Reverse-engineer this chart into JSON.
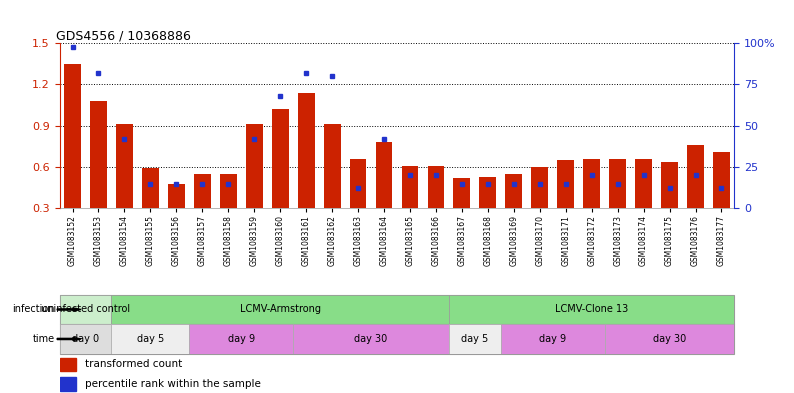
{
  "title": "GDS4556 / 10368886",
  "samples": [
    "GSM1083152",
    "GSM1083153",
    "GSM1083154",
    "GSM1083155",
    "GSM1083156",
    "GSM1083157",
    "GSM1083158",
    "GSM1083159",
    "GSM1083160",
    "GSM1083161",
    "GSM1083162",
    "GSM1083163",
    "GSM1083164",
    "GSM1083165",
    "GSM1083166",
    "GSM1083167",
    "GSM1083168",
    "GSM1083169",
    "GSM1083170",
    "GSM1083171",
    "GSM1083172",
    "GSM1083173",
    "GSM1083174",
    "GSM1083175",
    "GSM1083176",
    "GSM1083177"
  ],
  "red_values": [
    1.35,
    1.08,
    0.91,
    0.59,
    0.48,
    0.55,
    0.55,
    0.91,
    1.02,
    1.14,
    0.91,
    0.66,
    0.78,
    0.61,
    0.61,
    0.52,
    0.53,
    0.55,
    0.6,
    0.65,
    0.66,
    0.66,
    0.66,
    0.64,
    0.76,
    0.71
  ],
  "blue_values_pct": [
    98,
    82,
    42,
    15,
    15,
    15,
    15,
    42,
    68,
    82,
    80,
    12,
    42,
    20,
    20,
    15,
    15,
    15,
    15,
    15,
    20,
    15,
    20,
    12,
    20,
    12
  ],
  "ylim_left": [
    0.3,
    1.5
  ],
  "ylim_right": [
    0,
    100
  ],
  "yticks_left": [
    0.3,
    0.6,
    0.9,
    1.2,
    1.5
  ],
  "yticks_right": [
    0,
    25,
    50,
    75,
    100
  ],
  "ytick_labels_right": [
    "0",
    "25",
    "50",
    "75",
    "100%"
  ],
  "bar_color": "#cc2200",
  "dot_color": "#2233cc",
  "bg_color": "#ffffff",
  "infection_groups": [
    {
      "label": "uninfected control",
      "start": 0,
      "end": 2,
      "color": "#cceecc"
    },
    {
      "label": "LCMV-Armstrong",
      "start": 2,
      "end": 15,
      "color": "#88dd88"
    },
    {
      "label": "LCMV-Clone 13",
      "start": 15,
      "end": 26,
      "color": "#88dd88"
    }
  ],
  "time_groups": [
    {
      "label": "day 0",
      "start": 0,
      "end": 2,
      "color": "#dddddd"
    },
    {
      "label": "day 5",
      "start": 2,
      "end": 5,
      "color": "#eeeeee"
    },
    {
      "label": "day 9",
      "start": 5,
      "end": 9,
      "color": "#dd88dd"
    },
    {
      "label": "day 30",
      "start": 9,
      "end": 15,
      "color": "#dd88dd"
    },
    {
      "label": "day 5",
      "start": 15,
      "end": 17,
      "color": "#eeeeee"
    },
    {
      "label": "day 9",
      "start": 17,
      "end": 21,
      "color": "#dd88dd"
    },
    {
      "label": "day 30",
      "start": 21,
      "end": 26,
      "color": "#dd88dd"
    }
  ],
  "axis_color_left": "#cc2200",
  "axis_color_right": "#2233cc"
}
